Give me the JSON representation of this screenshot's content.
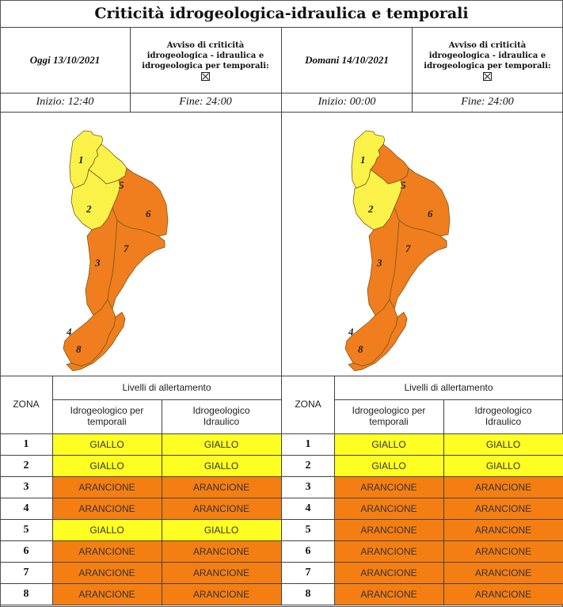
{
  "title": "Criticità idrogeologica-idraulica e temporali",
  "colors": {
    "giallo": "#ffff22",
    "arancione": "#f57e12",
    "map_giallo": "#fbf249",
    "map_arancione": "#f07e1e"
  },
  "days": [
    {
      "date": "Oggi 13/10/2021",
      "avviso": [
        "Avviso di criticità",
        "idrogeologica - idraulica e",
        "idrogeologica per temporali:"
      ],
      "start": "Inizio: 12:40",
      "end": "Fine: 24:00",
      "map_zones": {
        "1": "giallo",
        "2": "giallo",
        "3": "arancione",
        "4": "arancione",
        "5": "giallo",
        "6": "arancione",
        "7": "arancione",
        "8": "arancione"
      },
      "table": {
        "zona_header": "ZONA",
        "levels_header": "Livelli di allertamento",
        "col1_header": [
          "Idrogeologico per",
          "temporali"
        ],
        "col2_header": [
          "Idrogeologico",
          "Idraulico"
        ],
        "rows": [
          {
            "zona": "1",
            "temporali": "GIALLO",
            "idraulico": "GIALLO"
          },
          {
            "zona": "2",
            "temporali": "GIALLO",
            "idraulico": "GIALLO"
          },
          {
            "zona": "3",
            "temporali": "ARANCIONE",
            "idraulico": "ARANCIONE"
          },
          {
            "zona": "4",
            "temporali": "ARANCIONE",
            "idraulico": "ARANCIONE"
          },
          {
            "zona": "5",
            "temporali": "GIALLO",
            "idraulico": "GIALLO"
          },
          {
            "zona": "6",
            "temporali": "ARANCIONE",
            "idraulico": "ARANCIONE"
          },
          {
            "zona": "7",
            "temporali": "ARANCIONE",
            "idraulico": "ARANCIONE"
          },
          {
            "zona": "8",
            "temporali": "ARANCIONE",
            "idraulico": "ARANCIONE"
          }
        ]
      }
    },
    {
      "date": "Domani 14/10/2021",
      "avviso": [
        "Avviso di criticità",
        "idrogeologica - idraulica e",
        "idrogeologica per temporali:"
      ],
      "start": "Inizio: 00:00",
      "end": "Fine: 24:00",
      "map_zones": {
        "1": "giallo",
        "2": "giallo",
        "3": "arancione",
        "4": "arancione",
        "5": "arancione",
        "6": "arancione",
        "7": "arancione",
        "8": "arancione"
      },
      "table": {
        "zona_header": "ZONA",
        "levels_header": "Livelli di allertamento",
        "col1_header": [
          "Idrogeologico per",
          "temporali"
        ],
        "col2_header": [
          "Idrogeologico",
          "Idraulico"
        ],
        "rows": [
          {
            "zona": "1",
            "temporali": "GIALLO",
            "idraulico": "GIALLO"
          },
          {
            "zona": "2",
            "temporali": "GIALLO",
            "idraulico": "GIALLO"
          },
          {
            "zona": "3",
            "temporali": "ARANCIONE",
            "idraulico": "ARANCIONE"
          },
          {
            "zona": "4",
            "temporali": "ARANCIONE",
            "idraulico": "ARANCIONE"
          },
          {
            "zona": "5",
            "temporali": "ARANCIONE",
            "idraulico": "ARANCIONE"
          },
          {
            "zona": "6",
            "temporali": "ARANCIONE",
            "idraulico": "ARANCIONE"
          },
          {
            "zona": "7",
            "temporali": "ARANCIONE",
            "idraulico": "ARANCIONE"
          },
          {
            "zona": "8",
            "temporali": "ARANCIONE",
            "idraulico": "ARANCIONE"
          }
        ]
      }
    }
  ]
}
